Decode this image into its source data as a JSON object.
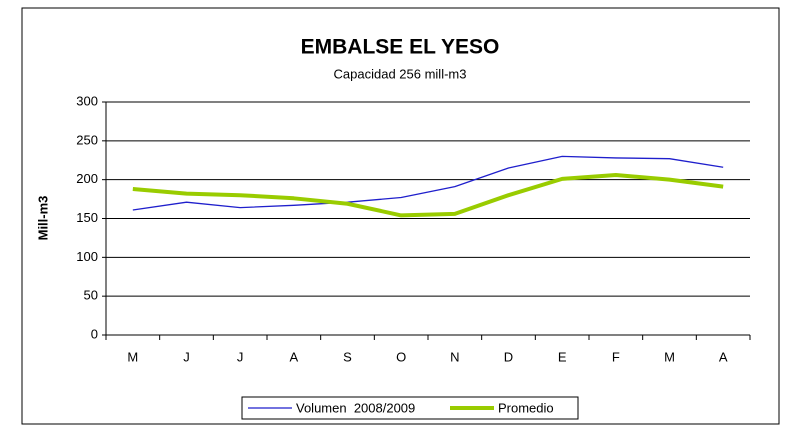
{
  "chart_data": {
    "type": "line",
    "title": "EMBALSE EL YESO",
    "subtitle": "Capacidad 256 mill-m3",
    "y_label": "Mill-m3",
    "categories": [
      "M",
      "J",
      "J",
      "A",
      "S",
      "O",
      "N",
      "D",
      "E",
      "F",
      "M",
      "A"
    ],
    "series": [
      {
        "name": "Volumen  2008/2009",
        "color": "#1f1fcc",
        "width": 1.3,
        "values": [
          161,
          171,
          164,
          167,
          171,
          177,
          191,
          215,
          230,
          228,
          227,
          216
        ]
      },
      {
        "name": "Promedio",
        "color": "#99cc00",
        "width": 4,
        "values": [
          188,
          182,
          180,
          176,
          169,
          154,
          156,
          180,
          201,
          206,
          200,
          191
        ]
      }
    ],
    "ylim": [
      0,
      300
    ],
    "yticks": [
      0,
      50,
      100,
      150,
      200,
      250,
      300
    ],
    "grid": true,
    "legend": "bottom"
  }
}
